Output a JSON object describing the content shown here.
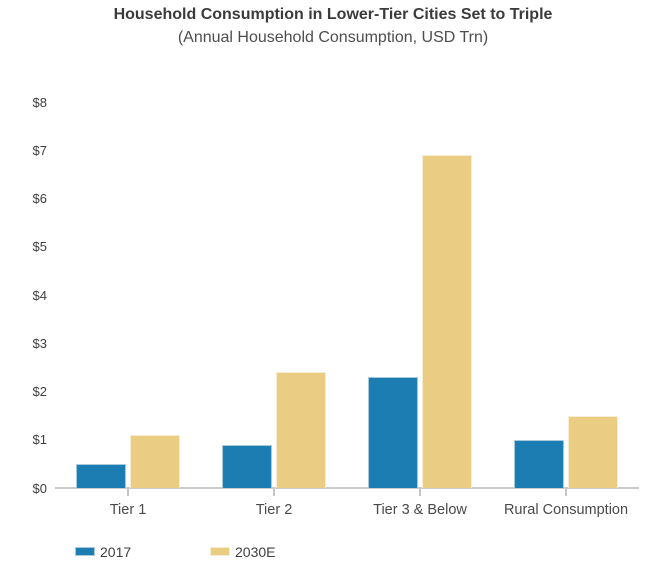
{
  "chart_data": {
    "type": "bar",
    "title": "Household Consumption in Lower-Tier Cities Set to Triple",
    "subtitle": "(Annual Household Consumption, USD Trn)",
    "categories": [
      "Tier 1",
      "Tier 2",
      "Tier 3 & Below",
      "Rural Consumption"
    ],
    "series": [
      {
        "name": "2017",
        "color": "#1b7db2",
        "border_color": "#a9c9dd",
        "values": [
          0.5,
          0.9,
          2.3,
          1.0
        ]
      },
      {
        "name": "2030E",
        "color": "#eacc82",
        "border_color": "#f7edd2",
        "values": [
          1.1,
          2.4,
          6.9,
          1.5
        ]
      }
    ],
    "y_axis": {
      "min": 0,
      "max": 8,
      "step": 1,
      "tick_prefix": "$",
      "tick_labels": [
        "$0",
        "$1",
        "$2",
        "$3",
        "$4",
        "$5",
        "$6",
        "$7",
        "$8"
      ]
    },
    "ylim": [
      0,
      8
    ],
    "grid": false,
    "legend": {
      "position": "bottom",
      "entries": [
        "2017",
        "2030E"
      ]
    },
    "axis_color": "#cbcbcb"
  }
}
